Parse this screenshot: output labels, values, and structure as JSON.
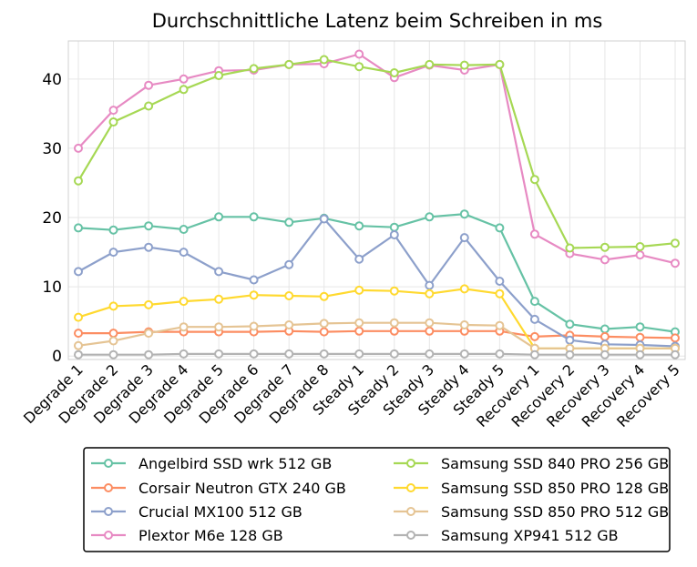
{
  "chart_data": {
    "type": "line",
    "title": "Durchschnittliche Latenz beim Schreiben in ms",
    "xlabel": "",
    "ylabel": "",
    "categories": [
      "Degrade 1",
      "Degrade 2",
      "Degrade 3",
      "Degrade 4",
      "Degrade 5",
      "Degrade 6",
      "Degrade 7",
      "Degrade 8",
      "Steady 1",
      "Steady 2",
      "Steady 3",
      "Steady 4",
      "Steady 5",
      "Recovery 1",
      "Recovery 2",
      "Recovery 3",
      "Recovery 4",
      "Recovery 5"
    ],
    "yticks": [
      0,
      10,
      20,
      30,
      40
    ],
    "ylim": [
      -0.5,
      45.5
    ],
    "grid": true,
    "legend_position": "bottom",
    "series": [
      {
        "name": "Angelbird SSD wrk 512 GB",
        "color": "#66c2a5",
        "values": [
          18.5,
          18.2,
          18.8,
          18.3,
          20.1,
          20.1,
          19.3,
          19.9,
          18.8,
          18.6,
          20.1,
          20.5,
          18.5,
          7.9,
          4.6,
          3.9,
          4.2,
          3.5
        ]
      },
      {
        "name": "Corsair Neutron GTX 240 GB",
        "color": "#fc8d62",
        "values": [
          3.3,
          3.3,
          3.5,
          3.5,
          3.5,
          3.5,
          3.6,
          3.5,
          3.6,
          3.6,
          3.6,
          3.6,
          3.6,
          2.8,
          3.0,
          2.8,
          2.7,
          2.6
        ]
      },
      {
        "name": "Crucial MX100 512 GB",
        "color": "#8da0cb",
        "values": [
          12.2,
          15.0,
          15.7,
          15.0,
          12.2,
          11.0,
          13.2,
          19.8,
          14.0,
          17.5,
          10.2,
          17.1,
          10.8,
          5.3,
          2.3,
          1.7,
          1.6,
          1.4
        ]
      },
      {
        "name": "Plextor M6e 128 GB",
        "color": "#e78ac3",
        "values": [
          30.0,
          35.5,
          39.1,
          40.0,
          41.2,
          41.3,
          42.1,
          42.2,
          43.6,
          40.2,
          42.0,
          41.3,
          42.1,
          17.6,
          14.8,
          13.9,
          14.6,
          13.4
        ]
      },
      {
        "name": "Samsung SSD 840 PRO 256 GB",
        "color": "#a6d854",
        "values": [
          25.3,
          33.8,
          36.1,
          38.5,
          40.5,
          41.5,
          42.1,
          42.8,
          41.8,
          40.9,
          42.1,
          42.0,
          42.1,
          25.5,
          15.6,
          15.7,
          15.8,
          16.3
        ]
      },
      {
        "name": "Samsung SSD 850 PRO 128 GB",
        "color": "#ffd92f",
        "values": [
          5.6,
          7.2,
          7.4,
          7.9,
          8.2,
          8.8,
          8.7,
          8.6,
          9.5,
          9.4,
          9.0,
          9.7,
          9.0,
          1.1,
          1.1,
          1.1,
          1.1,
          1.1
        ]
      },
      {
        "name": "Samsung SSD 850 PRO 512 GB",
        "color": "#e5c494",
        "values": [
          1.5,
          2.2,
          3.3,
          4.2,
          4.2,
          4.3,
          4.5,
          4.7,
          4.8,
          4.8,
          4.8,
          4.5,
          4.4,
          1.1,
          1.1,
          1.1,
          1.1,
          1.1
        ]
      },
      {
        "name": "Samsung XP941 512 GB",
        "color": "#b3b3b3",
        "values": [
          0.2,
          0.2,
          0.2,
          0.3,
          0.3,
          0.3,
          0.3,
          0.3,
          0.3,
          0.3,
          0.3,
          0.3,
          0.3,
          0.2,
          0.2,
          0.2,
          0.2,
          0.2
        ]
      }
    ]
  }
}
